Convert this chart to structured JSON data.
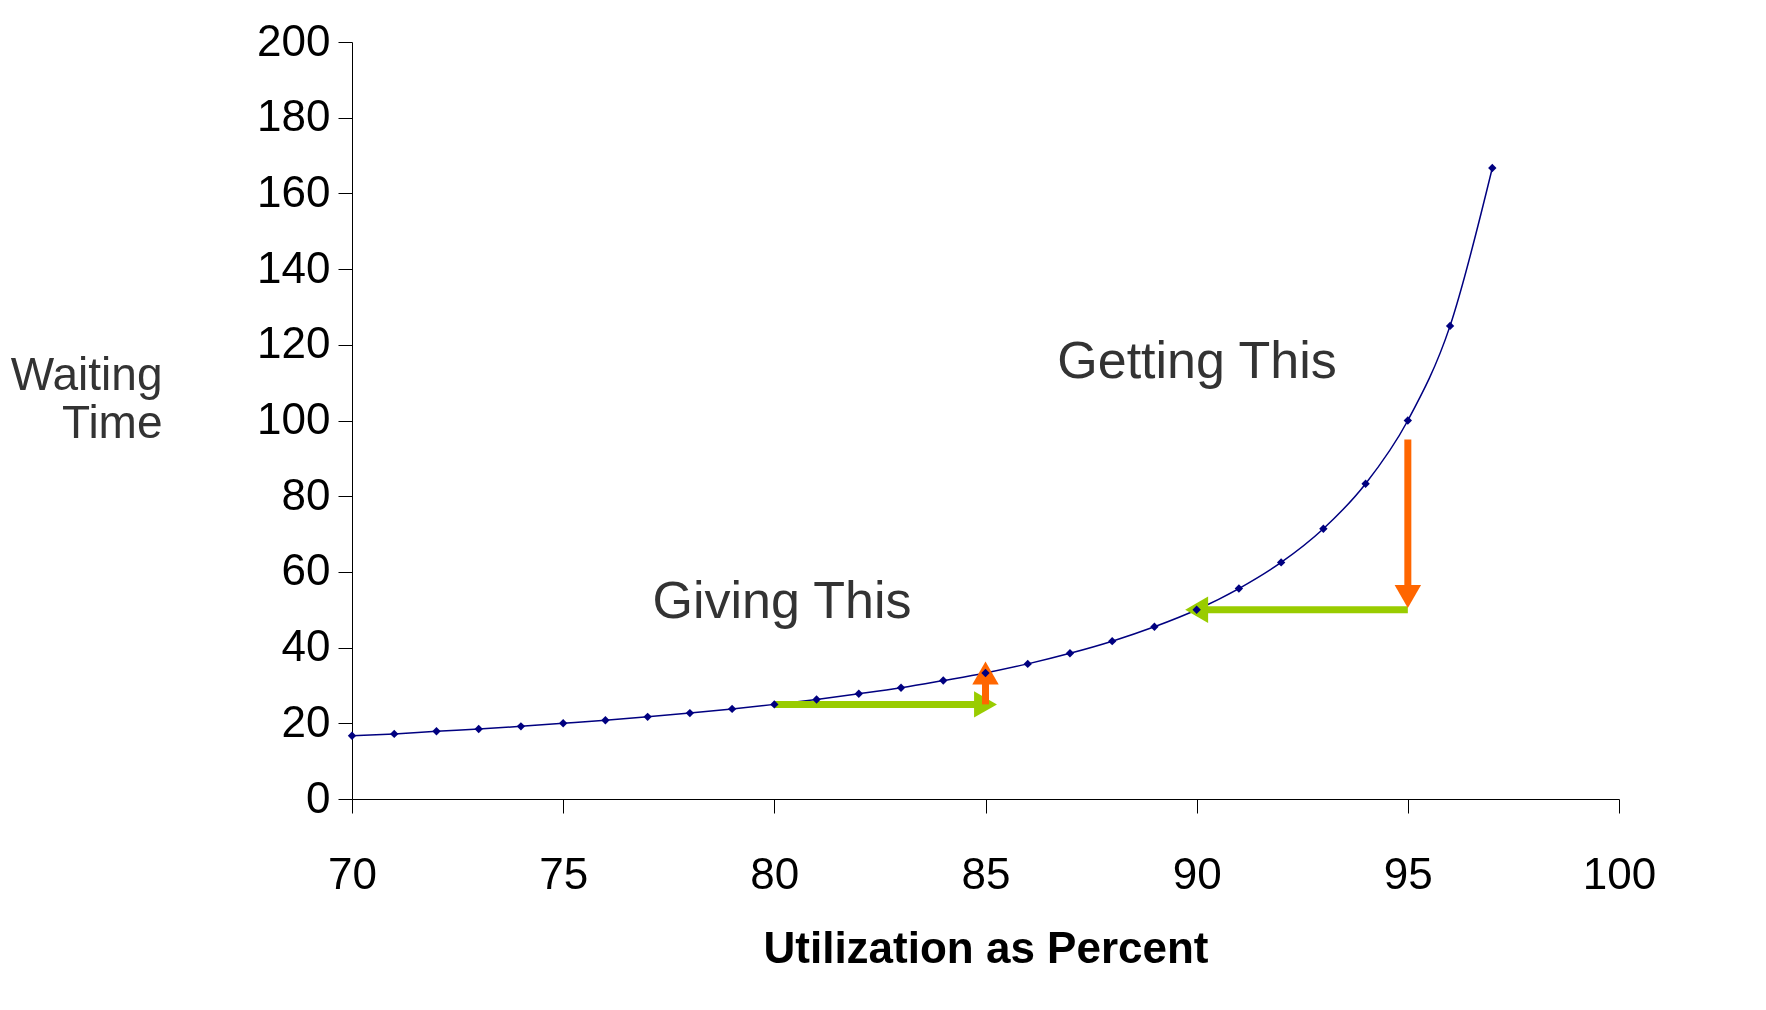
{
  "chart_data": {
    "type": "line",
    "xlabel": "Utilization as Percent",
    "ylabel": "Waiting Time",
    "x": [
      70,
      71,
      72,
      73,
      74,
      75,
      76,
      77,
      78,
      79,
      80,
      81,
      82,
      83,
      84,
      85,
      86,
      87,
      88,
      89,
      90,
      91,
      92,
      93,
      94,
      95,
      96,
      97
    ],
    "series": [
      {
        "color": "#000080",
        "values": [
          16.7,
          17.2,
          17.9,
          18.5,
          19.2,
          20,
          20.8,
          21.7,
          22.7,
          23.8,
          25,
          26.3,
          27.8,
          29.4,
          31.3,
          33.3,
          35.7,
          38.5,
          41.7,
          45.5,
          50,
          55.6,
          62.5,
          71.4,
          83.3,
          100,
          125,
          166.7
        ]
      }
    ],
    "marker": "diamond",
    "xlim": [
      70,
      100
    ],
    "xticks": [
      70,
      75,
      80,
      85,
      90,
      95,
      100
    ],
    "ylim": [
      0,
      200
    ],
    "yticks": [
      0,
      20,
      40,
      60,
      80,
      100,
      120,
      140,
      160,
      180,
      200
    ],
    "grid": false,
    "annotations": [
      "Getting This",
      "Giving This"
    ]
  }
}
